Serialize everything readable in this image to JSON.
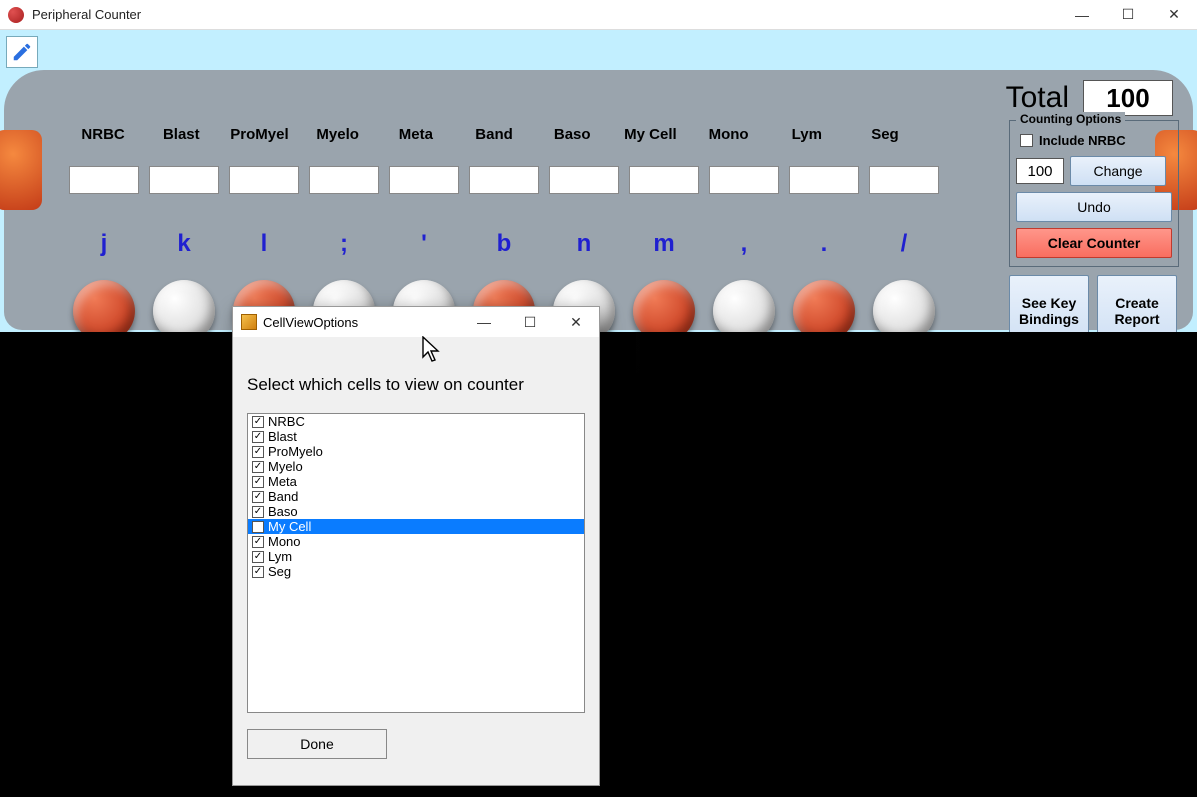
{
  "main_window": {
    "title": "Peripheral Counter",
    "min_glyph": "―",
    "max_glyph": "☐",
    "close_glyph": "✕"
  },
  "total": {
    "label": "Total",
    "value": "100"
  },
  "columns": [
    {
      "label": "NRBC",
      "key": "j",
      "color": "red"
    },
    {
      "label": "Blast",
      "key": "k",
      "color": "white"
    },
    {
      "label": "ProMyel",
      "key": "l",
      "color": "red"
    },
    {
      "label": "Myelo",
      "key": ";",
      "color": "white"
    },
    {
      "label": "Meta",
      "key": "'",
      "color": "white"
    },
    {
      "label": "Band",
      "key": "b",
      "color": "red"
    },
    {
      "label": "Baso",
      "key": "n",
      "color": "white"
    },
    {
      "label": "My Cell",
      "key": "m",
      "color": "red"
    },
    {
      "label": "Mono",
      "key": ",",
      "color": "white"
    },
    {
      "label": "Lym",
      "key": ".",
      "color": "red"
    },
    {
      "label": "Seg",
      "key": "/",
      "color": "white"
    }
  ],
  "options": {
    "legend": "Counting Options",
    "include_nrbc_label": "Include NRBC",
    "include_nrbc_checked": false,
    "max_value": "100",
    "change_label": "Change",
    "undo_label": "Undo",
    "clear_label": "Clear Counter",
    "see_key_bindings_label": "See Key\nBindings",
    "create_report_label": "Create\nReport"
  },
  "dialog": {
    "title": "CellViewOptions",
    "instruction": "Select which cells to view on counter",
    "done_label": "Done",
    "items": [
      {
        "label": "NRBC",
        "checked": true,
        "selected": false
      },
      {
        "label": "Blast",
        "checked": true,
        "selected": false
      },
      {
        "label": "ProMyelo",
        "checked": true,
        "selected": false
      },
      {
        "label": "Myelo",
        "checked": true,
        "selected": false
      },
      {
        "label": "Meta",
        "checked": true,
        "selected": false
      },
      {
        "label": "Band",
        "checked": true,
        "selected": false
      },
      {
        "label": "Baso",
        "checked": true,
        "selected": false
      },
      {
        "label": "My Cell",
        "checked": false,
        "selected": true
      },
      {
        "label": "Mono",
        "checked": true,
        "selected": false
      },
      {
        "label": "Lym",
        "checked": true,
        "selected": false
      },
      {
        "label": "Seg",
        "checked": true,
        "selected": false
      }
    ]
  },
  "colors": {
    "accent_blue": "#0a7cff",
    "button_red": "#b8260c",
    "device_grey": "#9aa4ad",
    "sky": "#c2efff"
  }
}
